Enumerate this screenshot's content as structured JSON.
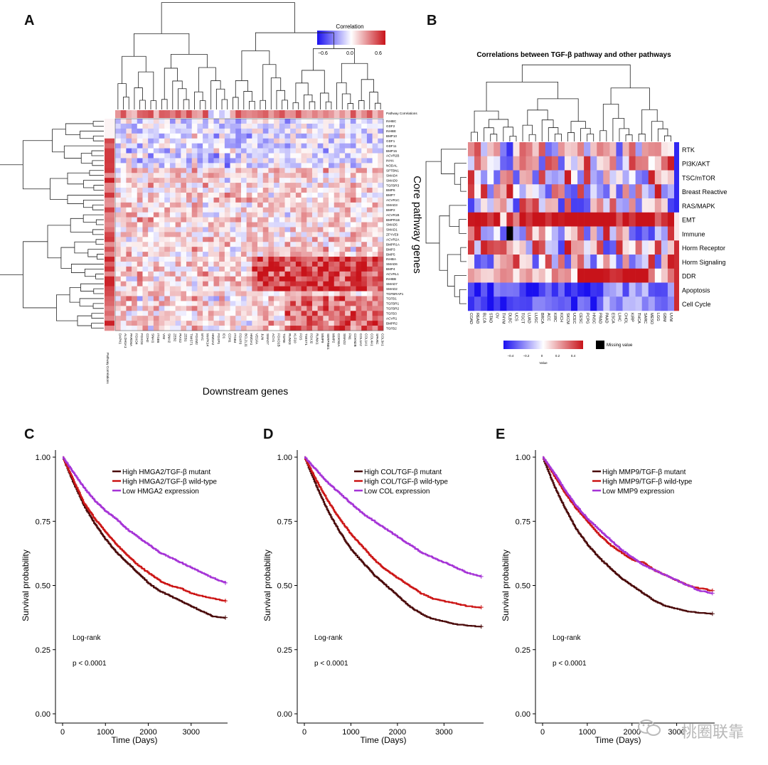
{
  "panels": {
    "A": {
      "letter": "A",
      "colorbar_title": "Correlation",
      "colorbar_ticks": [
        "−0.6",
        "0.0",
        "0.6"
      ],
      "row_annotation": "Pathway Correlations",
      "col_annotation": "Pathway Correlations",
      "row_axis_title": "Core pathway genes",
      "col_axis_title": "Downstream genes",
      "row_genes": [
        "INHBC",
        "GDF2",
        "INHBE",
        "BMP10",
        "GDF1",
        "GDF11",
        "BMP15",
        "ACVR2B",
        "INHA",
        "NODAL",
        "SPTBN1",
        "SMAD4",
        "SMAD9",
        "TGFBR3",
        "BMP6",
        "BMP7",
        "ACVR1C",
        "SMAD3",
        "BMP2",
        "ACVR1B",
        "BMPR1B",
        "SMAD5",
        "SMAD1",
        "ZFYVE9",
        "ACVR2A",
        "BMPR1A",
        "BMP3",
        "BMP5",
        "INHBA",
        "SMAD6",
        "BMP4",
        "ACVRL1",
        "INHBB",
        "SMAD7",
        "SMAD2",
        "TGFBRAP1",
        "TGFB1",
        "TGFBR1",
        "TGFBR2",
        "TGFB3",
        "ACVR1",
        "BMPR2",
        "TGFB2"
      ],
      "col_genes": [
        "DAPK1",
        "ALDH1A1",
        "PARD6A",
        "FOXO4",
        "FOXO3",
        "CDH2",
        "SNAI1",
        "ITGB6",
        "VIM",
        "SNAI2",
        "ZEB2",
        "PIAS2",
        "ZEB1",
        "TWIST1",
        "FOXM2",
        "MYC",
        "MAPK14",
        "HMGA2",
        "FOXP1",
        "ID1",
        "CDH1",
        "ITGB4",
        "FOXP3",
        "BCL2L11",
        "HMGA1",
        "VEGFA",
        "JUN",
        "SMAD7",
        "ACV1",
        "FOXO1B",
        "TGFBI",
        "RUNX3",
        "KLF10",
        "FOS",
        "TWIST1",
        "FOXJ2",
        "RUNX1",
        "MMP9",
        "SERPINE1",
        "MMP2",
        "CDKN1A",
        "SMAD2",
        "FN1",
        "CDKN2B",
        "COL1A2",
        "COL1A1",
        "COL4A1",
        "SPARC",
        "COL3A1"
      ]
    },
    "B": {
      "letter": "B",
      "title": "Correlations between TGF-β pathway and other pathways",
      "pathways": [
        "RTK",
        "PI3K/AKT",
        "TSC/mTOR",
        "Breast Reactive",
        "RAS/MAPK",
        "EMT",
        "Immune",
        "Horm Receptor",
        "Horm Signaling",
        "DDR",
        "Apoptosis",
        "Cell Cycle"
      ],
      "cancers": [
        "COAD",
        "READ",
        "BLCA",
        "STAD",
        "OV",
        "THYM",
        "DLBC",
        "UCS",
        "TGCT",
        "LUAD",
        "LUSC",
        "BRCA",
        "ACC",
        "KIRC",
        "KICH",
        "SKCM",
        "UCEC",
        "CESC",
        "PCPG",
        "HNSC",
        "PRAD",
        "PAAD",
        "ESCA",
        "LIHC",
        "CHOL",
        "KIRP",
        "THCA",
        "SARC",
        "MESO",
        "LGG",
        "GBM",
        "UVM"
      ],
      "legend_ticks": [
        "−0.4",
        "−0.2",
        "0",
        "0.2",
        "0.4"
      ],
      "legend_caption": "Value",
      "missing_label": "Missing value"
    },
    "C": {
      "letter": "C",
      "legend": [
        "High HMGA2/TGF-β mutant",
        "High HMGA2/TGF-β wild-type",
        "Low HMGA2 expression"
      ],
      "logrank": "Log-rank",
      "pvalue": "p < 0.0001"
    },
    "D": {
      "letter": "D",
      "legend": [
        "High COL/TGF-β mutant",
        "High COL/TGF-β wild-type",
        "Low COL expression"
      ],
      "logrank": "Log-rank",
      "pvalue": "p < 0.0001"
    },
    "E": {
      "letter": "E",
      "legend": [
        "High MMP9/TGF-β mutant",
        "High MMP9/TGF-β wild-type",
        "Low MMP9 expression"
      ],
      "logrank": "Log-rank",
      "pvalue": "p < 0.0001"
    }
  },
  "colors": {
    "neg": "#1a10f0",
    "mid": "#ffffff",
    "pos": "#c8131a",
    "missing": "#000000",
    "km_mutant": "#4a0a0a",
    "km_wildtype": "#cc1616",
    "km_low": "#a533d6"
  },
  "chart_data": [
    {
      "type": "line",
      "panel": "C",
      "xlabel": "Time (Days)",
      "ylabel": "Survival probability",
      "xticks": [
        "0",
        "1000",
        "2000",
        "3000"
      ],
      "yticks": [
        "0.00",
        "0.25",
        "0.50",
        "0.75",
        "1.00"
      ],
      "xlim": [
        0,
        3850
      ],
      "ylim": [
        0,
        1
      ],
      "series": [
        {
          "name": "High HMGA2/TGF-β mutant",
          "x": [
            0,
            250,
            500,
            750,
            1000,
            1250,
            1500,
            1750,
            2000,
            2250,
            2500,
            2750,
            3000,
            3250,
            3500,
            3800
          ],
          "y": [
            1.0,
            0.9,
            0.81,
            0.74,
            0.68,
            0.63,
            0.59,
            0.55,
            0.51,
            0.48,
            0.46,
            0.44,
            0.42,
            0.4,
            0.38,
            0.375
          ]
        },
        {
          "name": "High HMGA2/TGF-β wild-type",
          "x": [
            0,
            250,
            500,
            750,
            1000,
            1250,
            1500,
            1750,
            2000,
            2250,
            2500,
            2750,
            3000,
            3250,
            3500,
            3800
          ],
          "y": [
            1.0,
            0.91,
            0.82,
            0.76,
            0.71,
            0.66,
            0.62,
            0.58,
            0.55,
            0.52,
            0.5,
            0.49,
            0.47,
            0.46,
            0.45,
            0.44
          ]
        },
        {
          "name": "Low HMGA2 expression",
          "x": [
            0,
            250,
            500,
            750,
            1000,
            1250,
            1500,
            1750,
            2000,
            2250,
            2500,
            2750,
            3000,
            3250,
            3500,
            3800
          ],
          "y": [
            1.0,
            0.94,
            0.88,
            0.83,
            0.79,
            0.76,
            0.72,
            0.69,
            0.66,
            0.63,
            0.61,
            0.59,
            0.57,
            0.55,
            0.53,
            0.51
          ]
        }
      ]
    },
    {
      "type": "line",
      "panel": "D",
      "xlabel": "Time (Days)",
      "ylabel": "Survival probability",
      "xticks": [
        "0",
        "1000",
        "2000",
        "3000"
      ],
      "yticks": [
        "0.00",
        "0.25",
        "0.50",
        "0.75",
        "1.00"
      ],
      "xlim": [
        0,
        3850
      ],
      "ylim": [
        0,
        1
      ],
      "series": [
        {
          "name": "High COL/TGF-β mutant",
          "x": [
            0,
            250,
            500,
            750,
            1000,
            1250,
            1500,
            1750,
            2000,
            2250,
            2500,
            2750,
            3000,
            3250,
            3500,
            3800
          ],
          "y": [
            1.0,
            0.89,
            0.79,
            0.71,
            0.64,
            0.59,
            0.54,
            0.5,
            0.46,
            0.42,
            0.39,
            0.37,
            0.36,
            0.35,
            0.345,
            0.34
          ]
        },
        {
          "name": "High COL/TGF-β wild-type",
          "x": [
            0,
            250,
            500,
            750,
            1000,
            1250,
            1500,
            1750,
            2000,
            2250,
            2500,
            2750,
            3000,
            3250,
            3500,
            3800
          ],
          "y": [
            1.0,
            0.91,
            0.83,
            0.76,
            0.7,
            0.65,
            0.6,
            0.56,
            0.53,
            0.5,
            0.47,
            0.45,
            0.44,
            0.43,
            0.42,
            0.415
          ]
        },
        {
          "name": "Low COL expression",
          "x": [
            0,
            250,
            500,
            750,
            1000,
            1250,
            1500,
            1750,
            2000,
            2250,
            2500,
            2750,
            3000,
            3250,
            3500,
            3800
          ],
          "y": [
            1.0,
            0.95,
            0.9,
            0.86,
            0.82,
            0.78,
            0.75,
            0.72,
            0.69,
            0.66,
            0.63,
            0.61,
            0.59,
            0.57,
            0.55,
            0.535
          ]
        }
      ]
    },
    {
      "type": "line",
      "panel": "E",
      "xlabel": "Time (Days)",
      "ylabel": "Survival probability",
      "xticks": [
        "0",
        "1000",
        "2000",
        "3000"
      ],
      "yticks": [
        "0.00",
        "0.25",
        "0.50",
        "0.75",
        "1.00"
      ],
      "xlim": [
        0,
        3850
      ],
      "ylim": [
        0,
        1
      ],
      "series": [
        {
          "name": "High MMP9/TGF-β mutant",
          "x": [
            0,
            250,
            500,
            750,
            1000,
            1250,
            1500,
            1750,
            2000,
            2250,
            2500,
            2750,
            3000,
            3250,
            3500,
            3800
          ],
          "y": [
            1.0,
            0.89,
            0.8,
            0.72,
            0.66,
            0.61,
            0.57,
            0.53,
            0.5,
            0.47,
            0.44,
            0.42,
            0.41,
            0.4,
            0.395,
            0.39
          ]
        },
        {
          "name": "High MMP9/TGF-β wild-type",
          "x": [
            0,
            250,
            500,
            750,
            1000,
            1250,
            1500,
            1750,
            2000,
            2250,
            2500,
            2750,
            3000,
            3250,
            3500,
            3800
          ],
          "y": [
            1.0,
            0.93,
            0.86,
            0.8,
            0.75,
            0.7,
            0.66,
            0.63,
            0.6,
            0.59,
            0.56,
            0.54,
            0.52,
            0.5,
            0.49,
            0.48
          ]
        },
        {
          "name": "Low MMP9 expression",
          "x": [
            0,
            250,
            500,
            750,
            1000,
            1250,
            1500,
            1750,
            2000,
            2250,
            2500,
            2750,
            3000,
            3250,
            3500,
            3800
          ],
          "y": [
            1.0,
            0.94,
            0.87,
            0.81,
            0.76,
            0.72,
            0.68,
            0.64,
            0.61,
            0.58,
            0.56,
            0.54,
            0.52,
            0.5,
            0.48,
            0.47
          ]
        }
      ]
    }
  ],
  "watermark": "桃圈联靠"
}
